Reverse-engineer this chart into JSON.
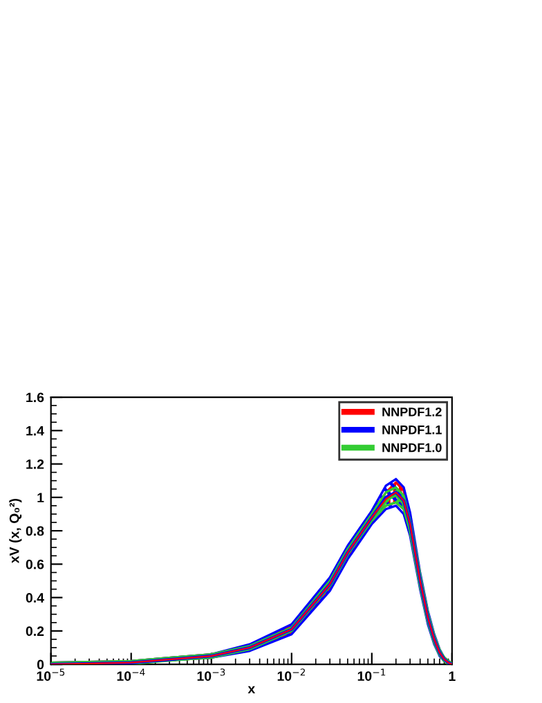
{
  "chart_data": {
    "type": "line",
    "xlabel": "x",
    "ylabel": "xV (x, Q₀²)",
    "log": "x",
    "x": [
      1e-05,
      0.0001,
      0.001,
      0.003,
      0.01,
      0.03,
      0.05,
      0.1,
      0.15,
      0.2,
      0.25,
      0.3,
      0.4,
      0.5,
      0.6,
      0.7,
      0.8,
      0.9,
      1
    ],
    "series": [
      {
        "name": "NNPDF1.2",
        "color": "#ff0000",
        "values": [
          0,
          0.01,
          0.05,
          0.1,
          0.21,
          0.48,
          0.67,
          0.88,
          0.99,
          1.03,
          0.98,
          0.84,
          0.5,
          0.28,
          0.15,
          0.07,
          0.03,
          0.01,
          0
        ],
        "lower": [
          0,
          0.01,
          0.04,
          0.09,
          0.19,
          0.46,
          0.65,
          0.86,
          0.95,
          0.97,
          0.93,
          0.8,
          0.47,
          0.25,
          0.13,
          0.06,
          0.02,
          0.01,
          0
        ],
        "upper": [
          0.01,
          0.02,
          0.06,
          0.11,
          0.23,
          0.5,
          0.69,
          0.9,
          1.03,
          1.09,
          1.04,
          0.88,
          0.53,
          0.31,
          0.17,
          0.08,
          0.04,
          0.02,
          0
        ]
      },
      {
        "name": "NNPDF1.1",
        "color": "#0000ff",
        "values": [
          0,
          0.01,
          0.05,
          0.1,
          0.21,
          0.48,
          0.67,
          0.88,
          1.0,
          1.03,
          0.98,
          0.84,
          0.5,
          0.28,
          0.15,
          0.07,
          0.03,
          0.01,
          0
        ],
        "lower": [
          0,
          0.01,
          0.04,
          0.08,
          0.18,
          0.44,
          0.63,
          0.84,
          0.93,
          0.95,
          0.9,
          0.77,
          0.45,
          0.24,
          0.12,
          0.05,
          0.02,
          0.01,
          0
        ],
        "upper": [
          0.01,
          0.02,
          0.06,
          0.12,
          0.24,
          0.52,
          0.71,
          0.92,
          1.07,
          1.11,
          1.06,
          0.91,
          0.55,
          0.32,
          0.18,
          0.09,
          0.04,
          0.02,
          0
        ]
      },
      {
        "name": "NNPDF1.0",
        "color": "#33cc33",
        "values": [
          0,
          0.01,
          0.05,
          0.1,
          0.21,
          0.48,
          0.67,
          0.88,
          0.99,
          1.02,
          0.97,
          0.83,
          0.5,
          0.28,
          0.15,
          0.07,
          0.03,
          0.01,
          0
        ],
        "lower": [
          0,
          0.01,
          0.04,
          0.09,
          0.2,
          0.47,
          0.66,
          0.86,
          0.95,
          0.97,
          0.93,
          0.8,
          0.47,
          0.26,
          0.13,
          0.06,
          0.02,
          0.01,
          0
        ],
        "upper": [
          0.01,
          0.02,
          0.06,
          0.11,
          0.22,
          0.5,
          0.69,
          0.9,
          1.03,
          1.06,
          1.01,
          0.86,
          0.53,
          0.3,
          0.17,
          0.08,
          0.04,
          0.02,
          0
        ]
      }
    ],
    "xlim": [
      1e-05,
      1
    ],
    "ylim": [
      0,
      1.6
    ],
    "xticks": [
      {
        "value": 1e-05,
        "label": "10$^{−5}$"
      },
      {
        "value": 0.0001,
        "label": "10$^{−4}$"
      },
      {
        "value": 0.001,
        "label": "10$^{−3}$"
      },
      {
        "value": 0.01,
        "label": "10$^{−2}$"
      },
      {
        "value": 0.1,
        "label": "10$^{−1}$"
      },
      1
    ],
    "yticks": [
      0,
      0.2,
      0.4,
      0.6,
      0.8,
      1,
      1.2,
      1.4,
      1.6
    ],
    "legend": "top right",
    "grid": false
  }
}
